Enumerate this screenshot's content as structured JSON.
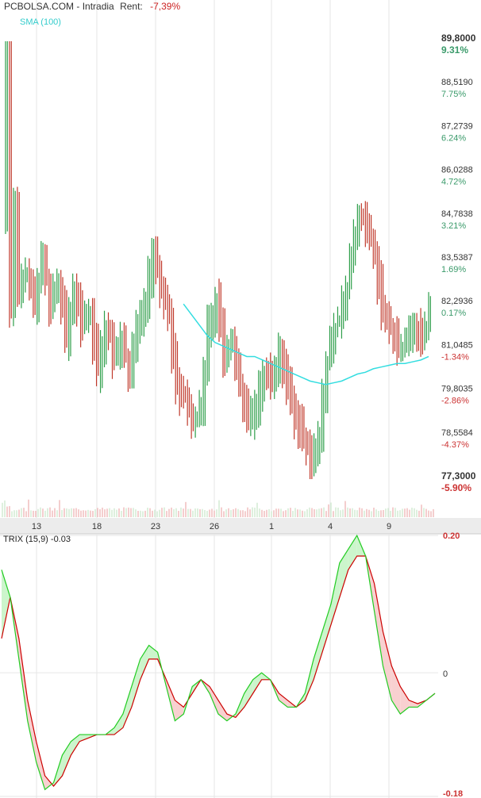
{
  "header": {
    "site": "PCBOLSA.COM",
    "sep1": " - ",
    "mode": "Intradia",
    "rent_label": "Rent:",
    "rent_value": "-7,39%"
  },
  "sma_label": "SMA (100)",
  "trix_label": "TRIX (15,9) -0.03",
  "colors": {
    "up": "#2e9e4a",
    "down": "#c0392b",
    "sma": "#33dde0",
    "trix": "#22cc22",
    "signal": "#cc0000",
    "fill_up": "#ccf5cc",
    "fill_down": "#f8d0d0",
    "grid": "#e6e6e6",
    "band": "#e9e9e9",
    "pct_pos": "#3a9a6a",
    "pct_neg": "#cc3333"
  },
  "chart_data": [
    {
      "type": "line",
      "title": "",
      "price_axis": {
        "ylim": [
          77.3,
          89.8
        ],
        "labels": [
          {
            "price": "89,8000",
            "pct": "9.31%"
          },
          {
            "price": "88,5190",
            "pct": "7.75%"
          },
          {
            "price": "87,2739",
            "pct": "6.24%"
          },
          {
            "price": "86,0288",
            "pct": "4.72%"
          },
          {
            "price": "84,7838",
            "pct": "3.21%"
          },
          {
            "price": "83,5387",
            "pct": "1.69%"
          },
          {
            "price": "82,2936",
            "pct": "0.17%"
          },
          {
            "price": "81,0485",
            "pct": "-1.34%"
          },
          {
            "price": "79,8035",
            "pct": "-2.86%"
          },
          {
            "price": "78,5584",
            "pct": "-4.37%"
          },
          {
            "price": "77,3000",
            "pct": "-5.90%"
          }
        ]
      },
      "x_ticks": [
        "13",
        "18",
        "23",
        "26",
        "1",
        "4",
        "9"
      ],
      "sma_label": "SMA (100)",
      "price_series": [
        {
          "t": 0,
          "p": 84.8
        },
        {
          "t": 1,
          "p": 89.6
        },
        {
          "t": 2,
          "p": 82.1
        },
        {
          "t": 3,
          "p": 85.1
        },
        {
          "t": 4,
          "p": 82.5
        },
        {
          "t": 6,
          "p": 83.3
        },
        {
          "t": 8,
          "p": 82.4
        },
        {
          "t": 10,
          "p": 83.6
        },
        {
          "t": 12,
          "p": 82.3
        },
        {
          "t": 14,
          "p": 83.0
        },
        {
          "t": 16,
          "p": 81.3
        },
        {
          "t": 18,
          "p": 82.8
        },
        {
          "t": 20,
          "p": 81.7
        },
        {
          "t": 22,
          "p": 82.1
        },
        {
          "t": 24,
          "p": 80.4
        },
        {
          "t": 26,
          "p": 81.8
        },
        {
          "t": 28,
          "p": 80.8
        },
        {
          "t": 30,
          "p": 81.3
        },
        {
          "t": 32,
          "p": 80.2
        },
        {
          "t": 34,
          "p": 81.6
        },
        {
          "t": 36,
          "p": 82.3
        },
        {
          "t": 38,
          "p": 83.9
        },
        {
          "t": 40,
          "p": 82.6
        },
        {
          "t": 42,
          "p": 82.0
        },
        {
          "t": 44,
          "p": 80.0
        },
        {
          "t": 46,
          "p": 79.6
        },
        {
          "t": 48,
          "p": 78.9
        },
        {
          "t": 50,
          "p": 79.3
        },
        {
          "t": 52,
          "p": 81.6
        },
        {
          "t": 54,
          "p": 82.4
        },
        {
          "t": 56,
          "p": 80.7
        },
        {
          "t": 58,
          "p": 81.2
        },
        {
          "t": 60,
          "p": 80.0
        },
        {
          "t": 62,
          "p": 79.0
        },
        {
          "t": 64,
          "p": 79.2
        },
        {
          "t": 66,
          "p": 80.4
        },
        {
          "t": 68,
          "p": 80.1
        },
        {
          "t": 70,
          "p": 80.8
        },
        {
          "t": 72,
          "p": 80.0
        },
        {
          "t": 74,
          "p": 79.1
        },
        {
          "t": 76,
          "p": 78.5
        },
        {
          "t": 78,
          "p": 77.7
        },
        {
          "t": 80,
          "p": 78.6
        },
        {
          "t": 82,
          "p": 80.7
        },
        {
          "t": 84,
          "p": 81.6
        },
        {
          "t": 86,
          "p": 82.2
        },
        {
          "t": 88,
          "p": 83.5
        },
        {
          "t": 90,
          "p": 84.9
        },
        {
          "t": 92,
          "p": 84.6
        },
        {
          "t": 94,
          "p": 83.7
        },
        {
          "t": 96,
          "p": 82.1
        },
        {
          "t": 98,
          "p": 81.6
        },
        {
          "t": 100,
          "p": 81.1
        },
        {
          "t": 102,
          "p": 81.2
        },
        {
          "t": 104,
          "p": 81.6
        },
        {
          "t": 106,
          "p": 81.4
        },
        {
          "t": 108,
          "p": 82.0
        }
      ],
      "sma_series": [
        {
          "t": 46,
          "p": 82.3
        },
        {
          "t": 48,
          "p": 82.0
        },
        {
          "t": 50,
          "p": 81.7
        },
        {
          "t": 52,
          "p": 81.4
        },
        {
          "t": 54,
          "p": 81.2
        },
        {
          "t": 56,
          "p": 81.1
        },
        {
          "t": 58,
          "p": 81.0
        },
        {
          "t": 60,
          "p": 80.9
        },
        {
          "t": 62,
          "p": 80.8
        },
        {
          "t": 64,
          "p": 80.8
        },
        {
          "t": 66,
          "p": 80.7
        },
        {
          "t": 68,
          "p": 80.6
        },
        {
          "t": 70,
          "p": 80.5
        },
        {
          "t": 72,
          "p": 80.4
        },
        {
          "t": 74,
          "p": 80.3
        },
        {
          "t": 76,
          "p": 80.2
        },
        {
          "t": 78,
          "p": 80.1
        },
        {
          "t": 80,
          "p": 80.05
        },
        {
          "t": 82,
          "p": 80.0
        },
        {
          "t": 84,
          "p": 80.05
        },
        {
          "t": 86,
          "p": 80.1
        },
        {
          "t": 88,
          "p": 80.2
        },
        {
          "t": 90,
          "p": 80.3
        },
        {
          "t": 92,
          "p": 80.35
        },
        {
          "t": 94,
          "p": 80.45
        },
        {
          "t": 96,
          "p": 80.5
        },
        {
          "t": 98,
          "p": 80.55
        },
        {
          "t": 100,
          "p": 80.6
        },
        {
          "t": 102,
          "p": 80.6
        },
        {
          "t": 104,
          "p": 80.65
        },
        {
          "t": 106,
          "p": 80.7
        },
        {
          "t": 108,
          "p": 80.8
        }
      ]
    },
    {
      "type": "line",
      "title": "TRIX (15,9) -0.03",
      "ylim": [
        -0.18,
        0.2
      ],
      "y_ticks": [
        "0.20",
        "0",
        "-0.18"
      ],
      "trix": [
        {
          "t": 0,
          "v": 0.15
        },
        {
          "t": 2,
          "v": 0.11
        },
        {
          "t": 4,
          "v": 0.02
        },
        {
          "t": 6,
          "v": -0.07
        },
        {
          "t": 8,
          "v": -0.13
        },
        {
          "t": 10,
          "v": -0.17
        },
        {
          "t": 12,
          "v": -0.16
        },
        {
          "t": 14,
          "v": -0.12
        },
        {
          "t": 16,
          "v": -0.1
        },
        {
          "t": 18,
          "v": -0.09
        },
        {
          "t": 20,
          "v": -0.09
        },
        {
          "t": 22,
          "v": -0.09
        },
        {
          "t": 24,
          "v": -0.09
        },
        {
          "t": 26,
          "v": -0.08
        },
        {
          "t": 28,
          "v": -0.06
        },
        {
          "t": 30,
          "v": -0.02
        },
        {
          "t": 32,
          "v": 0.02
        },
        {
          "t": 34,
          "v": 0.04
        },
        {
          "t": 36,
          "v": 0.03
        },
        {
          "t": 38,
          "v": -0.02
        },
        {
          "t": 40,
          "v": -0.07
        },
        {
          "t": 42,
          "v": -0.06
        },
        {
          "t": 44,
          "v": -0.02
        },
        {
          "t": 46,
          "v": -0.01
        },
        {
          "t": 48,
          "v": -0.03
        },
        {
          "t": 50,
          "v": -0.06
        },
        {
          "t": 52,
          "v": -0.07
        },
        {
          "t": 54,
          "v": -0.06
        },
        {
          "t": 56,
          "v": -0.03
        },
        {
          "t": 58,
          "v": -0.01
        },
        {
          "t": 60,
          "v": 0.0
        },
        {
          "t": 62,
          "v": -0.01
        },
        {
          "t": 64,
          "v": -0.04
        },
        {
          "t": 66,
          "v": -0.05
        },
        {
          "t": 68,
          "v": -0.05
        },
        {
          "t": 70,
          "v": -0.03
        },
        {
          "t": 72,
          "v": 0.02
        },
        {
          "t": 74,
          "v": 0.06
        },
        {
          "t": 76,
          "v": 0.1
        },
        {
          "t": 78,
          "v": 0.16
        },
        {
          "t": 80,
          "v": 0.18
        },
        {
          "t": 82,
          "v": 0.2
        },
        {
          "t": 84,
          "v": 0.17
        },
        {
          "t": 86,
          "v": 0.09
        },
        {
          "t": 88,
          "v": 0.01
        },
        {
          "t": 90,
          "v": -0.04
        },
        {
          "t": 92,
          "v": -0.06
        },
        {
          "t": 94,
          "v": -0.05
        },
        {
          "t": 96,
          "v": -0.05
        },
        {
          "t": 98,
          "v": -0.04
        },
        {
          "t": 100,
          "v": -0.03
        }
      ],
      "signal": [
        {
          "t": 0,
          "v": 0.05
        },
        {
          "t": 2,
          "v": 0.11
        },
        {
          "t": 4,
          "v": 0.05
        },
        {
          "t": 6,
          "v": -0.04
        },
        {
          "t": 8,
          "v": -0.1
        },
        {
          "t": 10,
          "v": -0.15
        },
        {
          "t": 12,
          "v": -0.165
        },
        {
          "t": 14,
          "v": -0.15
        },
        {
          "t": 16,
          "v": -0.12
        },
        {
          "t": 18,
          "v": -0.1
        },
        {
          "t": 20,
          "v": -0.095
        },
        {
          "t": 22,
          "v": -0.09
        },
        {
          "t": 24,
          "v": -0.09
        },
        {
          "t": 26,
          "v": -0.09
        },
        {
          "t": 28,
          "v": -0.08
        },
        {
          "t": 30,
          "v": -0.05
        },
        {
          "t": 32,
          "v": -0.01
        },
        {
          "t": 34,
          "v": 0.02
        },
        {
          "t": 36,
          "v": 0.02
        },
        {
          "t": 38,
          "v": -0.01
        },
        {
          "t": 40,
          "v": -0.04
        },
        {
          "t": 42,
          "v": -0.05
        },
        {
          "t": 44,
          "v": -0.03
        },
        {
          "t": 46,
          "v": -0.01
        },
        {
          "t": 48,
          "v": -0.02
        },
        {
          "t": 50,
          "v": -0.04
        },
        {
          "t": 52,
          "v": -0.06
        },
        {
          "t": 54,
          "v": -0.065
        },
        {
          "t": 56,
          "v": -0.05
        },
        {
          "t": 58,
          "v": -0.03
        },
        {
          "t": 60,
          "v": -0.01
        },
        {
          "t": 62,
          "v": -0.01
        },
        {
          "t": 64,
          "v": -0.03
        },
        {
          "t": 66,
          "v": -0.04
        },
        {
          "t": 68,
          "v": -0.05
        },
        {
          "t": 70,
          "v": -0.04
        },
        {
          "t": 72,
          "v": -0.01
        },
        {
          "t": 74,
          "v": 0.03
        },
        {
          "t": 76,
          "v": 0.07
        },
        {
          "t": 78,
          "v": 0.11
        },
        {
          "t": 80,
          "v": 0.15
        },
        {
          "t": 82,
          "v": 0.17
        },
        {
          "t": 84,
          "v": 0.17
        },
        {
          "t": 86,
          "v": 0.13
        },
        {
          "t": 88,
          "v": 0.06
        },
        {
          "t": 90,
          "v": 0.01
        },
        {
          "t": 92,
          "v": -0.02
        },
        {
          "t": 94,
          "v": -0.04
        },
        {
          "t": 96,
          "v": -0.045
        },
        {
          "t": 98,
          "v": -0.04
        },
        {
          "t": 100,
          "v": -0.03
        }
      ]
    }
  ]
}
